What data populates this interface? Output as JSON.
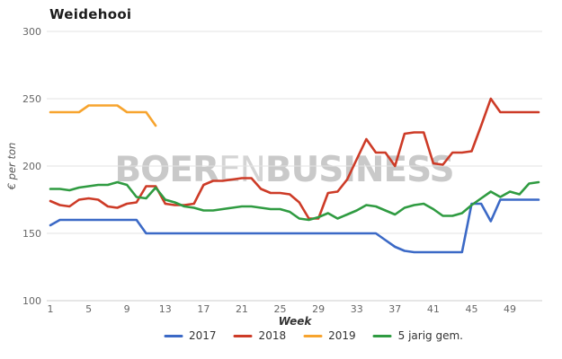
{
  "title": "Weidehooi",
  "watermark": {
    "part1": "BOER",
    "part2": "EN",
    "part3": "BUSINESS"
  },
  "axes": {
    "y_label": "€ per ton",
    "x_label": "Week",
    "y_ticks": [
      300,
      250,
      200,
      150,
      100
    ],
    "x_ticks": [
      1,
      5,
      9,
      13,
      17,
      21,
      25,
      29,
      33,
      37,
      41,
      45,
      49
    ],
    "y_min": 100,
    "y_max": 300,
    "x_min": 1,
    "x_max": 52
  },
  "style": {
    "grid_color": "#e3e3e3",
    "axis_line_color": "#cccccc",
    "tick_color": "#666666",
    "background": "#ffffff"
  },
  "chart_data": {
    "type": "line",
    "title": "Weidehooi",
    "xlabel": "Week",
    "ylabel": "€ per ton",
    "ylim": [
      100,
      300
    ],
    "x_start_week": 1,
    "x_step": 1,
    "grid": "horizontal-only",
    "legend_position": "bottom",
    "series": [
      {
        "name": "2017",
        "color": "#3b69c6",
        "values": [
          156,
          160,
          160,
          160,
          160,
          160,
          160,
          160,
          160,
          160,
          150,
          150,
          150,
          150,
          150,
          150,
          150,
          150,
          150,
          150,
          150,
          150,
          150,
          150,
          150,
          150,
          150,
          150,
          150,
          150,
          150,
          150,
          150,
          150,
          150,
          145,
          140,
          137,
          136,
          136,
          136,
          136,
          136,
          136,
          172,
          172,
          159,
          175,
          175,
          175,
          175,
          175
        ]
      },
      {
        "name": "2018",
        "color": "#cd3b27",
        "values": [
          174,
          171,
          170,
          175,
          176,
          175,
          170,
          169,
          172,
          173,
          185,
          185,
          172,
          171,
          171,
          172,
          186,
          189,
          189,
          190,
          191,
          191,
          183,
          180,
          180,
          179,
          173,
          161,
          161,
          180,
          181,
          190,
          205,
          220,
          210,
          210,
          200,
          224,
          225,
          225,
          202,
          201,
          210,
          210,
          211,
          230,
          250,
          240,
          240,
          240,
          240,
          240
        ]
      },
      {
        "name": "2019",
        "color": "#f7a42e",
        "values": [
          240,
          240,
          240,
          240,
          245,
          245,
          245,
          245,
          240,
          240,
          240,
          230
        ]
      },
      {
        "name": "5 jarig gem.",
        "color": "#2f9b41",
        "values": [
          183,
          183,
          182,
          184,
          185,
          186,
          186,
          188,
          186,
          177,
          176,
          184,
          175,
          173,
          170,
          169,
          167,
          167,
          168,
          169,
          170,
          170,
          169,
          168,
          168,
          166,
          161,
          160,
          162,
          165,
          161,
          164,
          167,
          171,
          170,
          167,
          164,
          169,
          171,
          172,
          168,
          163,
          163,
          165,
          171,
          176,
          181,
          177,
          181,
          179,
          187,
          188
        ]
      }
    ]
  }
}
